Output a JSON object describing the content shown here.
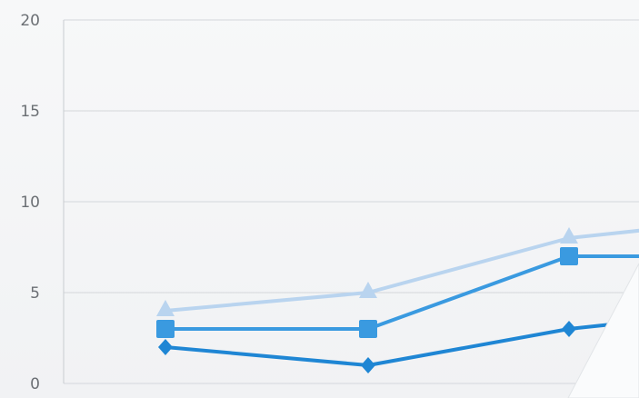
{
  "chart_data": {
    "type": "line",
    "title": "",
    "xlabel": "",
    "ylabel": "",
    "ylim": [
      0,
      20
    ],
    "yticks": [
      "0",
      "5",
      "10",
      "15",
      "20"
    ],
    "grid": true,
    "x": [
      1,
      2,
      3,
      4
    ],
    "series": [
      {
        "marker": "triangle",
        "color": "#b9d4ef",
        "values": [
          4,
          5,
          8,
          8.5
        ]
      },
      {
        "marker": "square",
        "color": "#3a9ae0",
        "values": [
          3,
          3,
          7,
          7
        ]
      },
      {
        "marker": "diamond",
        "color": "#1f86d4",
        "values": [
          2,
          1,
          3,
          3.5
        ]
      }
    ]
  }
}
